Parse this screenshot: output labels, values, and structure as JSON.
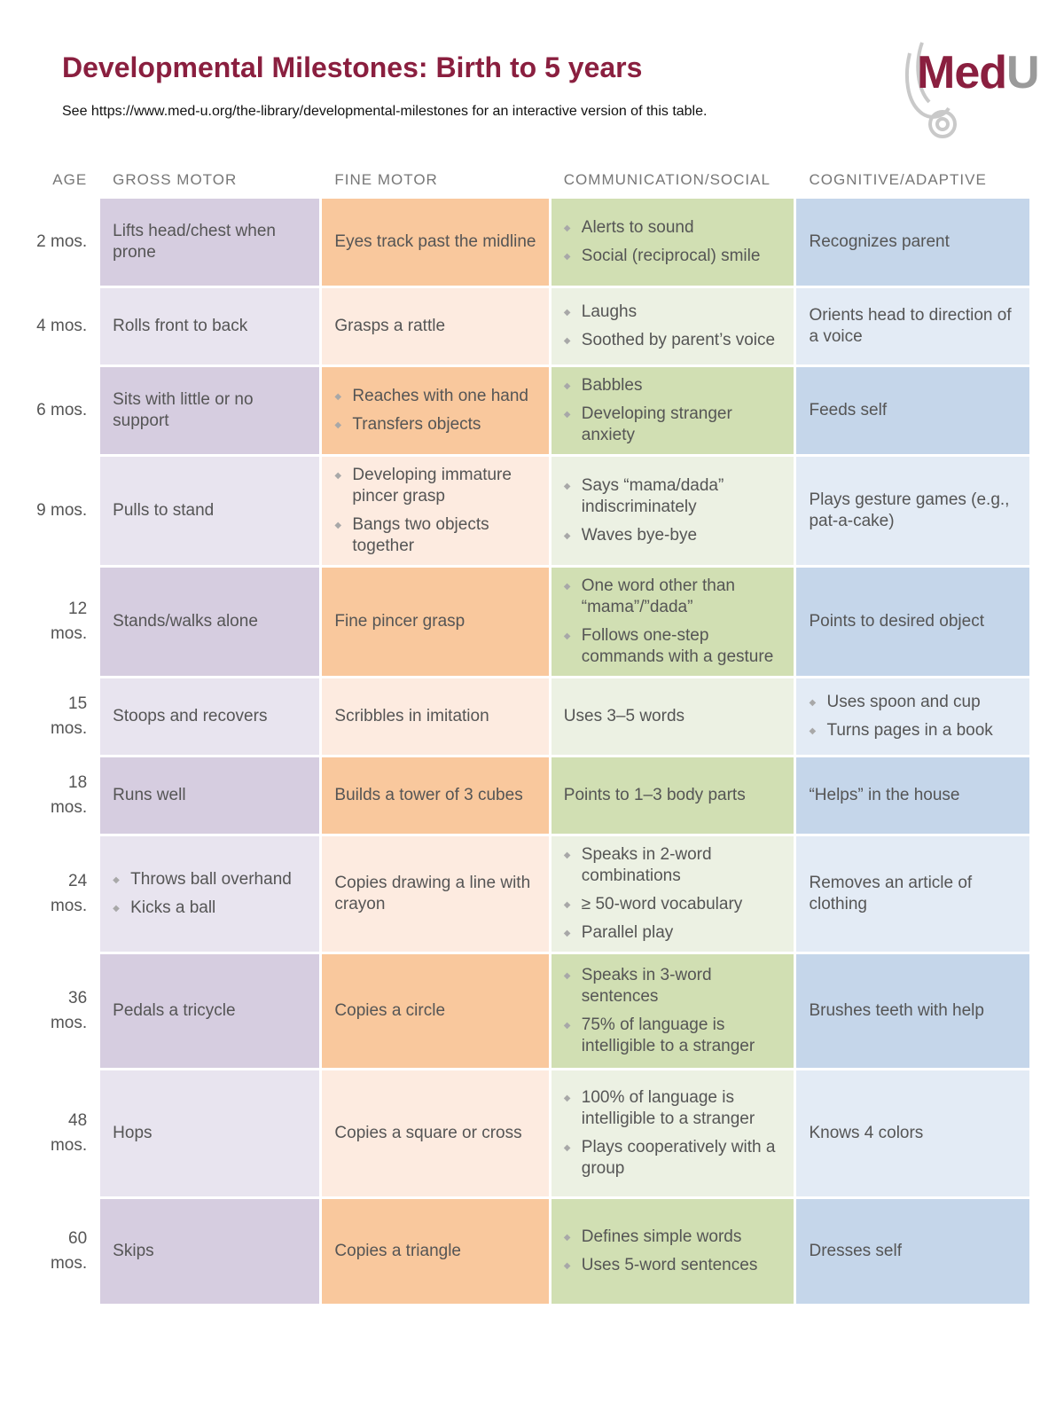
{
  "title": "Developmental Milestones: Birth to 5 years",
  "subtitle": "See https://www.med-u.org/the-library/developmental-milestones for an interactive version of this table.",
  "logo": {
    "part1": "Med",
    "part2": "U"
  },
  "headers": {
    "age": "AGE",
    "gross": "GROSS MOTOR",
    "fine": "FINE MOTOR",
    "comm": "COMMUNICATION/SOCIAL",
    "cog": "COGNITIVE/ADAPTIVE"
  },
  "colors": {
    "title": "#8a1f3f",
    "gross_dark": "#d6cde0",
    "gross_light": "#e8e4ef",
    "fine_dark": "#f9c89d",
    "fine_light": "#fdebe0",
    "comm_dark": "#d1dfb3",
    "comm_light": "#ecf1e3",
    "cog_dark": "#c5d6ea",
    "cog_light": "#e3ebf5"
  },
  "rows": [
    {
      "age": [
        "2 mos."
      ],
      "gross": [
        "Lifts head/chest when prone"
      ],
      "fine": [
        "Eyes track past the midline"
      ],
      "comm": [
        "Alerts to sound",
        "Social (reciprocal) smile"
      ],
      "cog": [
        "Recognizes parent"
      ]
    },
    {
      "age": [
        "4 mos."
      ],
      "gross": [
        "Rolls front to back"
      ],
      "fine": [
        "Grasps a rattle"
      ],
      "comm": [
        "Laughs",
        "Soothed by parent’s voice"
      ],
      "cog": [
        "Orients head to direction of a voice"
      ]
    },
    {
      "age": [
        "6 mos."
      ],
      "gross": [
        "Sits with little or no support"
      ],
      "fine": [
        "Reaches with one hand",
        "Transfers objects"
      ],
      "comm": [
        "Babbles",
        "Developing stranger anxiety"
      ],
      "cog": [
        "Feeds self"
      ]
    },
    {
      "age": [
        "9 mos."
      ],
      "gross": [
        "Pulls to stand"
      ],
      "fine": [
        "Developing immature pincer grasp",
        "Bangs two objects together"
      ],
      "comm": [
        "Says “mama/dada” indiscriminately",
        "Waves bye-bye"
      ],
      "cog": [
        "Plays gesture games (e.g., pat-a-cake)"
      ]
    },
    {
      "age": [
        "12",
        "mos."
      ],
      "gross": [
        "Stands/walks alone"
      ],
      "fine": [
        "Fine pincer grasp"
      ],
      "comm": [
        "One word other than “mama”/”dada”",
        "Follows one-step commands with a gesture"
      ],
      "cog": [
        "Points to desired object"
      ]
    },
    {
      "age": [
        "15",
        "mos."
      ],
      "gross": [
        "Stoops and recovers"
      ],
      "fine": [
        "Scribbles in imitation"
      ],
      "comm": [
        "Uses 3–5 words"
      ],
      "cog": [
        "Uses spoon and cup",
        "Turns pages in a book"
      ]
    },
    {
      "age": [
        "18",
        "mos."
      ],
      "gross": [
        "Runs well"
      ],
      "fine": [
        "Builds a tower of 3 cubes"
      ],
      "comm": [
        "Points to 1–3 body parts"
      ],
      "cog": [
        "“Helps” in the house"
      ]
    },
    {
      "age": [
        "24",
        "mos."
      ],
      "gross": [
        "Throws ball overhand",
        "Kicks a ball"
      ],
      "fine": [
        "Copies drawing a line with crayon"
      ],
      "comm": [
        "Speaks in 2-word combinations",
        "≥ 50-word vocabulary",
        "Parallel play"
      ],
      "cog": [
        "Removes an article of clothing"
      ]
    },
    {
      "age": [
        "36",
        "mos."
      ],
      "gross": [
        "Pedals a tricycle"
      ],
      "fine": [
        "Copies a circle"
      ],
      "comm": [
        "Speaks in 3-word sentences",
        "75% of language is intelligible to a stranger"
      ],
      "cog": [
        "Brushes teeth with help"
      ]
    },
    {
      "age": [
        "48",
        "mos."
      ],
      "gross": [
        "Hops"
      ],
      "fine": [
        "Copies a square or cross"
      ],
      "comm": [
        "100% of language is intelligible to a stranger",
        "Plays cooperatively with a group"
      ],
      "cog": [
        "Knows 4 colors"
      ]
    },
    {
      "age": [
        "60",
        "mos."
      ],
      "gross": [
        "Skips"
      ],
      "fine": [
        "Copies a triangle"
      ],
      "comm": [
        "Defines simple words",
        "Uses 5-word sentences"
      ],
      "cog": [
        "Dresses self"
      ]
    }
  ]
}
